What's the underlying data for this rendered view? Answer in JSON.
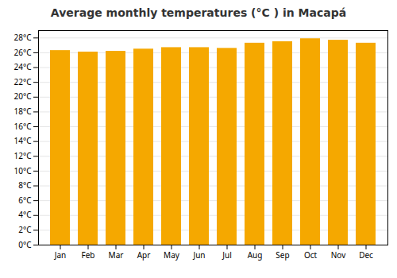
{
  "chart_data": {
    "type": "bar",
    "title": "Average monthly temperatures (°C ) in Macapá",
    "categories": [
      "Jan",
      "Feb",
      "Mar",
      "Apr",
      "May",
      "Jun",
      "Jul",
      "Aug",
      "Sep",
      "Oct",
      "Nov",
      "Dec"
    ],
    "values": [
      26.3,
      26.1,
      26.2,
      26.5,
      26.7,
      26.7,
      26.6,
      27.3,
      27.5,
      27.9,
      27.7,
      27.3
    ],
    "color": "#F5A800",
    "ylim": [
      0,
      29
    ],
    "yticks": [
      {
        "value": 0,
        "label": "0°C"
      },
      {
        "value": 2,
        "label": "2°C"
      },
      {
        "value": 4,
        "label": "4°C"
      },
      {
        "value": 6,
        "label": "6°C"
      },
      {
        "value": 8,
        "label": "8°C"
      },
      {
        "value": 10,
        "label": "10°C"
      },
      {
        "value": 12,
        "label": "12°C"
      },
      {
        "value": 14,
        "label": "14°C"
      },
      {
        "value": 16,
        "label": "16°C"
      },
      {
        "value": 18,
        "label": "18°C"
      },
      {
        "value": 20,
        "label": "20°C"
      },
      {
        "value": 22,
        "label": "22°C"
      },
      {
        "value": 24,
        "label": "24°C"
      },
      {
        "value": 26,
        "label": "26°C"
      },
      {
        "value": 28,
        "label": "28°C"
      }
    ],
    "grid": true
  }
}
